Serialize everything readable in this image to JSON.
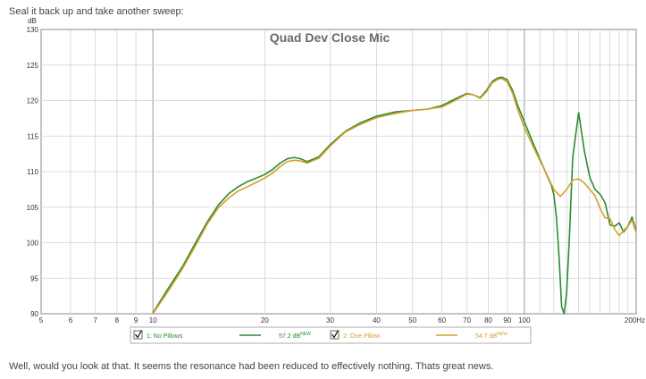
{
  "post": {
    "intro": "Seal it back up and take another sweep:",
    "outro": "Well, would you look at that. It seems the resonance had been reduced to effectively nothing. Thats great news."
  },
  "chart_data": {
    "type": "line",
    "title": "Quad Dev Close Mic",
    "ylabel": "dB",
    "xlabel": "",
    "xscale": "log",
    "xlim": [
      5,
      200
    ],
    "ylim": [
      90,
      130
    ],
    "grid": true,
    "x_tick_labels": [
      {
        "v": 5,
        "t": "5"
      },
      {
        "v": 6,
        "t": "6"
      },
      {
        "v": 7,
        "t": "7"
      },
      {
        "v": 8,
        "t": "8"
      },
      {
        "v": 9,
        "t": "9"
      },
      {
        "v": 10,
        "t": "10"
      },
      {
        "v": 20,
        "t": "20"
      },
      {
        "v": 30,
        "t": "30"
      },
      {
        "v": 40,
        "t": "40"
      },
      {
        "v": 50,
        "t": "50"
      },
      {
        "v": 60,
        "t": "60"
      },
      {
        "v": 70,
        "t": "70"
      },
      {
        "v": 80,
        "t": "80"
      },
      {
        "v": 90,
        "t": "90"
      },
      {
        "v": 100,
        "t": "100"
      },
      {
        "v": 200,
        "t": "200Hz"
      }
    ],
    "y_tick_labels": [
      {
        "v": 90,
        "t": "90"
      },
      {
        "v": 95,
        "t": "95"
      },
      {
        "v": 100,
        "t": "100"
      },
      {
        "v": 105,
        "t": "105"
      },
      {
        "v": 110,
        "t": "110"
      },
      {
        "v": 115,
        "t": "115"
      },
      {
        "v": 120,
        "t": "120"
      },
      {
        "v": 125,
        "t": "125"
      },
      {
        "v": 130,
        "t": "130"
      }
    ],
    "legend_position": "bottom",
    "series": [
      {
        "name": "1: No Pillows",
        "level": "57.2 dB",
        "color": "#2e8b2e",
        "x": [
          10,
          11,
          12,
          13,
          14,
          15,
          16,
          17,
          18,
          19,
          20,
          21,
          22,
          23,
          24,
          25,
          26,
          28,
          30,
          33,
          36,
          40,
          45,
          50,
          55,
          60,
          65,
          70,
          73,
          76,
          79,
          82,
          85,
          87,
          90,
          93,
          96,
          100,
          105,
          110,
          115,
          118,
          120,
          122,
          124,
          126,
          128,
          130,
          132,
          135,
          140,
          145,
          150,
          155,
          160,
          165,
          170,
          175,
          180,
          185,
          190,
          195,
          200
        ],
        "y": [
          90.1,
          93.6,
          96.6,
          99.9,
          102.9,
          105.3,
          106.9,
          107.9,
          108.6,
          109.1,
          109.6,
          110.3,
          111.2,
          111.8,
          112.0,
          111.8,
          111.4,
          112.1,
          113.8,
          115.7,
          116.8,
          117.8,
          118.4,
          118.6,
          118.8,
          119.3,
          120.2,
          121.0,
          120.8,
          120.4,
          121.4,
          122.7,
          123.2,
          123.3,
          122.9,
          121.4,
          119.3,
          117.0,
          114.3,
          111.8,
          109.5,
          108.2,
          106.8,
          103.5,
          98.0,
          91.0,
          90.0,
          93.0,
          100.0,
          112.0,
          118.3,
          113.0,
          109.2,
          107.5,
          106.8,
          105.6,
          102.5,
          102.3,
          102.8,
          101.5,
          102.3,
          103.6,
          101.6
        ]
      },
      {
        "name": "2: One Pillow",
        "level": "54.7 dB",
        "color": "#d4a02a",
        "x": [
          10,
          11,
          12,
          13,
          14,
          15,
          16,
          17,
          18,
          19,
          20,
          21,
          22,
          23,
          24,
          25,
          26,
          28,
          30,
          33,
          36,
          40,
          45,
          50,
          55,
          60,
          65,
          70,
          73,
          76,
          79,
          82,
          85,
          87,
          90,
          93,
          96,
          100,
          105,
          110,
          115,
          120,
          125,
          130,
          135,
          140,
          145,
          150,
          155,
          160,
          165,
          170,
          175,
          180,
          185,
          190,
          195,
          200
        ],
        "y": [
          89.8,
          93.2,
          96.3,
          99.5,
          102.6,
          104.9,
          106.3,
          107.3,
          107.9,
          108.5,
          109.1,
          109.8,
          110.7,
          111.4,
          111.6,
          111.5,
          111.2,
          111.9,
          113.6,
          115.6,
          116.6,
          117.6,
          118.2,
          118.6,
          118.8,
          119.1,
          120.0,
          120.9,
          120.8,
          120.3,
          121.2,
          122.5,
          123.0,
          123.1,
          122.6,
          121.0,
          118.7,
          116.2,
          113.8,
          111.6,
          109.6,
          107.5,
          106.5,
          107.5,
          108.8,
          109.0,
          108.4,
          107.5,
          106.6,
          104.8,
          103.5,
          103.4,
          101.9,
          101.0,
          101.7,
          102.3,
          103.2,
          101.4
        ]
      }
    ]
  }
}
